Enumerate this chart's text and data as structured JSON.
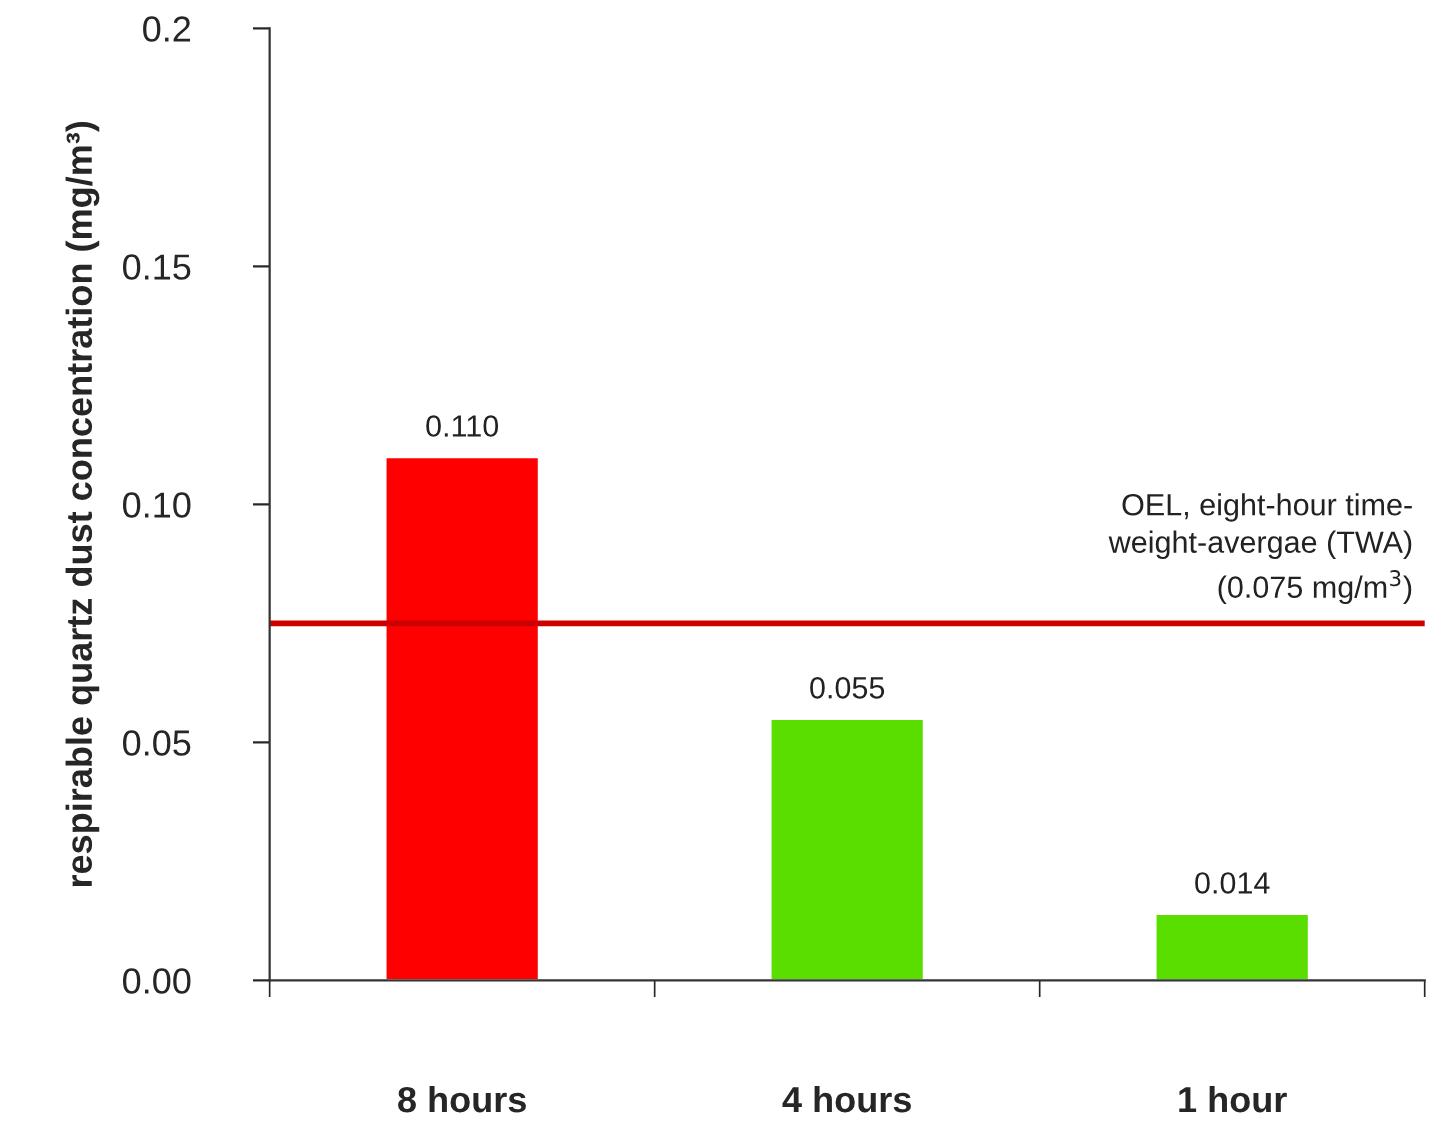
{
  "chart_data": {
    "type": "bar",
    "ylabel": "respirable quartz dust concentration (mg/m³)",
    "categories": [
      "8 hours",
      "4 hours",
      "1 hour"
    ],
    "values": [
      0.11,
      0.055,
      0.014
    ],
    "colors": [
      "#ff0000",
      "#5ade00",
      "#5ade00"
    ],
    "value_labels": [
      "0.110",
      "0.055",
      "0.014"
    ],
    "ylim": [
      0,
      0.2
    ],
    "yticks": [
      {
        "value": 0,
        "label": "0.00"
      },
      0.05,
      {
        "value": 0.1,
        "label": "0.10"
      },
      0.15,
      0.2
    ],
    "ref_lines": [
      {
        "axis": "y",
        "value": 0.075,
        "label": "OEL, eight-hour time-\nweight-avergae (TWA)\n(0.075 mg/m$^{3}$)",
        "color": "#cc0000",
        "line_style": "solid"
      }
    ],
    "grid": false,
    "legend": false
  }
}
